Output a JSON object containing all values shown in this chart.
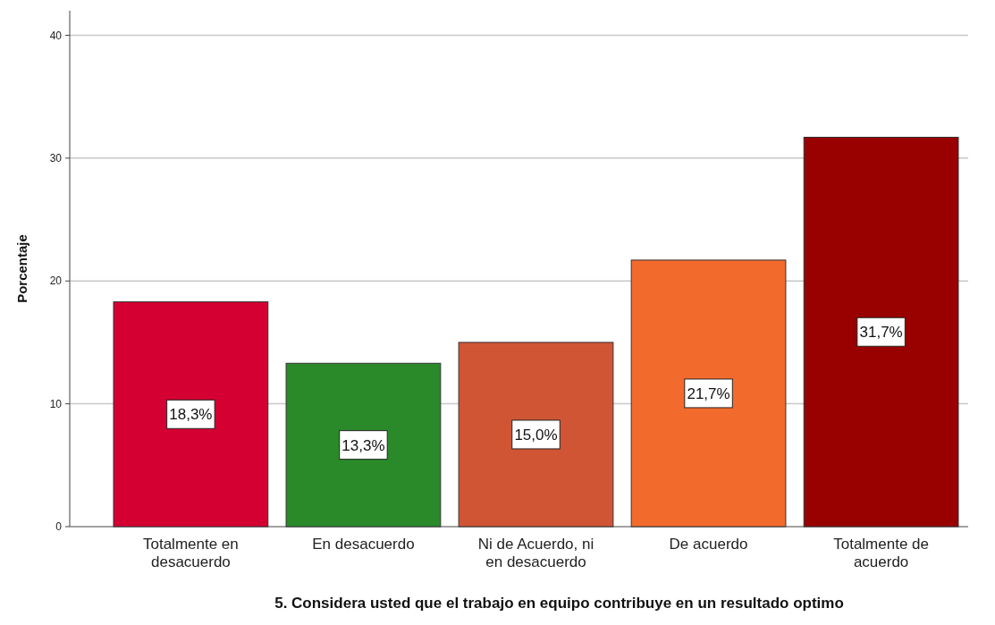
{
  "chart_data": {
    "type": "bar",
    "xlabel": "5. Considera usted que el trabajo en equipo contribuye en un resultado optimo",
    "ylabel": "Porcentaje",
    "categories": [
      "Totalmente en desacuerdo",
      "En desacuerdo",
      "Ni de Acuerdo, ni en desacuerdo",
      "De acuerdo",
      "Totalmente de acuerdo"
    ],
    "values": [
      18.3,
      13.3,
      15.0,
      21.7,
      31.7
    ],
    "colors": [
      "#d50032",
      "#2a8a2a",
      "#d05535",
      "#f26a2c",
      "#990000"
    ],
    "value_labels": [
      "18,3%",
      "13,3%",
      "15,0%",
      "21,7%",
      "31,7%"
    ],
    "ylim": [
      0,
      42
    ],
    "yticks": [
      0,
      10,
      20,
      30,
      40
    ],
    "grid": "y"
  }
}
